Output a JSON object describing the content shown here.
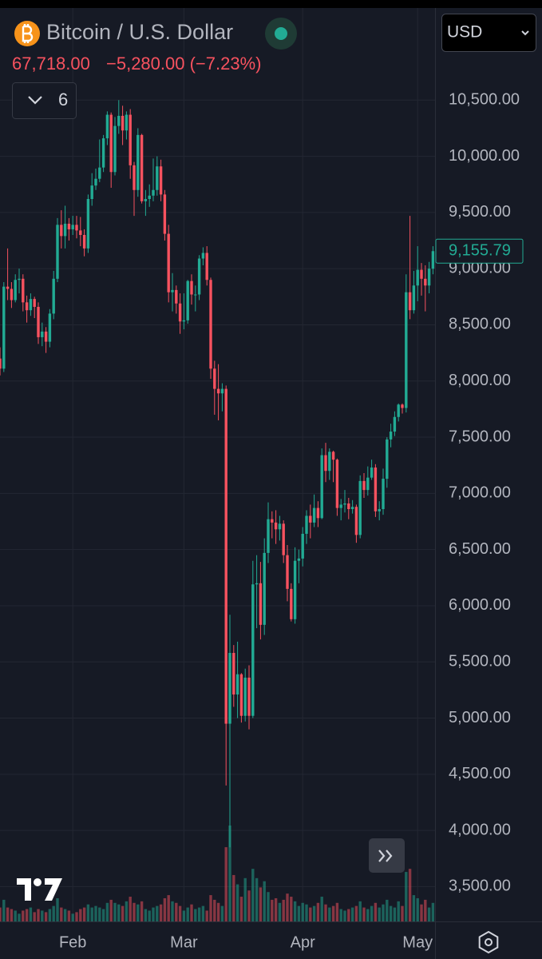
{
  "header": {
    "title": "Bitcoin / U.S. Dollar",
    "price": "67,718.00",
    "change": "−5,280.00 (−7.23%)",
    "indicator_count": "6",
    "currency": "USD"
  },
  "chart_data": {
    "type": "candlestick",
    "categories": [
      null,
      null,
      null,
      null,
      null,
      null,
      null,
      null,
      null,
      null,
      null,
      null,
      null,
      null,
      null,
      null,
      null,
      null,
      null,
      "Feb",
      null,
      null,
      null,
      null,
      null,
      null,
      null,
      null,
      null,
      null,
      null,
      null,
      null,
      null,
      null,
      null,
      null,
      null,
      null,
      null,
      null,
      null,
      null,
      null,
      null,
      null,
      null,
      null,
      "Mar",
      null,
      null,
      null,
      null,
      null,
      null,
      null,
      null,
      null,
      null,
      null,
      null,
      null,
      null,
      null,
      null,
      null,
      null,
      null,
      null,
      null,
      null,
      null,
      null,
      null,
      null,
      null,
      null,
      null,
      null,
      "Apr",
      null,
      null,
      null,
      null,
      null,
      null,
      null,
      null,
      null,
      null,
      null,
      null,
      null,
      null,
      null,
      null,
      null,
      null,
      null,
      null,
      null,
      null,
      null,
      null,
      null,
      null,
      null,
      null,
      null,
      "May",
      null,
      null,
      null,
      null
    ],
    "open": [
      8200,
      8110,
      8840,
      8820,
      8720,
      8900,
      8910,
      8700,
      8630,
      8730,
      8660,
      8390,
      8440,
      8350,
      8600,
      8910,
      9390,
      9290,
      9400,
      9350,
      9390,
      9340,
      9300,
      9180,
      9620,
      9740,
      9800,
      9900,
      10160,
      10370,
      9860,
      10270,
      10360,
      10230,
      10370,
      9920,
      9700,
      10190,
      9600,
      9620,
      9650,
      9700,
      9910,
      9660,
      9310,
      8790,
      8810,
      8690,
      8530,
      8540,
      8890,
      8770,
      8770,
      9090,
      9140,
      8900,
      8110,
      7930,
      7890,
      7930,
      4950,
      5580,
      5210,
      5390,
      5020,
      5360,
      5020,
      6190,
      6200,
      5830,
      6470,
      6770,
      6740,
      6680,
      6730,
      6450,
      6150,
      5880,
      6400,
      6420,
      6640,
      6800,
      6740,
      6870,
      6780,
      7340,
      7200,
      7370,
      7300,
      6870,
      6900,
      6910,
      6860,
      6880,
      6630,
      7110,
      7030,
      7140,
      7230,
      6840,
      6860,
      7130,
      7480,
      7550,
      7680,
      7790,
      7760,
      8790,
      8630,
      8850,
      8990,
      8910,
      8850,
      9000
    ],
    "high": [
      8300,
      8880,
      9180,
      8880,
      8950,
      9000,
      8950,
      8760,
      8780,
      8750,
      8700,
      8520,
      8480,
      8640,
      8980,
      9450,
      9520,
      9560,
      9450,
      9470,
      9470,
      9460,
      9350,
      9660,
      9850,
      9890,
      10150,
      10190,
      10400,
      10390,
      10350,
      10500,
      10450,
      10400,
      10420,
      9950,
      10250,
      10200,
      9700,
      9750,
      9980,
      10000,
      9970,
      9700,
      9390,
      8960,
      8850,
      8780,
      8780,
      8900,
      8950,
      8850,
      9120,
      9190,
      9200,
      8920,
      8180,
      8150,
      7980,
      7960,
      5920,
      5650,
      5680,
      5400,
      5440,
      5470,
      6400,
      6450,
      6390,
      6600,
      6920,
      6840,
      6850,
      6800,
      6760,
      6540,
      6200,
      6520,
      6500,
      6700,
      6850,
      6900,
      6990,
      6930,
      7400,
      7450,
      7400,
      7380,
      7310,
      6950,
      7030,
      6960,
      6940,
      6900,
      7160,
      7180,
      7240,
      7300,
      7260,
      6930,
      7220,
      7500,
      7620,
      7730,
      7800,
      7800,
      8950,
      9470,
      8980,
      9200,
      9050,
      9030,
      9060,
      9200
    ],
    "low": [
      8050,
      8080,
      8720,
      8650,
      8700,
      8780,
      8620,
      8520,
      8580,
      8560,
      8330,
      8310,
      8250,
      8300,
      8550,
      8880,
      9180,
      9180,
      9250,
      9300,
      9270,
      9200,
      9110,
      9140,
      9560,
      9700,
      9770,
      9860,
      10100,
      9720,
      9830,
      10200,
      10100,
      10150,
      9800,
      9470,
      9640,
      9580,
      9470,
      9550,
      9600,
      9650,
      9600,
      9250,
      8700,
      8620,
      8600,
      8420,
      8460,
      8510,
      8680,
      8620,
      8720,
      9030,
      8850,
      8020,
      7700,
      7650,
      7730,
      4400,
      3850,
      5100,
      5000,
      4960,
      4970,
      4900,
      5000,
      5800,
      5700,
      5740,
      6380,
      6600,
      6550,
      6580,
      6380,
      6040,
      5860,
      5840,
      6200,
      6350,
      6550,
      6600,
      6700,
      6700,
      6770,
      7100,
      7120,
      7100,
      6800,
      6760,
      6830,
      6770,
      6820,
      6560,
      6600,
      6960,
      6980,
      7120,
      6790,
      6760,
      6810,
      7050,
      7410,
      7510,
      7640,
      7710,
      7720,
      8550,
      8600,
      8710,
      8760,
      8620,
      8780,
      8950
    ],
    "close": [
      8110,
      8840,
      8820,
      8720,
      8900,
      8910,
      8700,
      8630,
      8730,
      8660,
      8390,
      8440,
      8350,
      8600,
      8910,
      9390,
      9290,
      9400,
      9350,
      9390,
      9340,
      9300,
      9180,
      9620,
      9740,
      9800,
      9900,
      10160,
      10370,
      9860,
      10270,
      10360,
      10230,
      10370,
      9920,
      9700,
      10190,
      9600,
      9620,
      9650,
      9700,
      9910,
      9660,
      9310,
      8790,
      8810,
      8690,
      8530,
      8540,
      8890,
      8770,
      8770,
      9090,
      9140,
      8900,
      8110,
      7930,
      7890,
      7930,
      4950,
      5580,
      5210,
      5390,
      5020,
      5360,
      5020,
      6190,
      6200,
      5830,
      6470,
      6770,
      6740,
      6680,
      6730,
      6450,
      6150,
      5880,
      6400,
      6420,
      6640,
      6800,
      6740,
      6870,
      6780,
      7340,
      7200,
      7370,
      7300,
      6870,
      6900,
      6910,
      6860,
      6880,
      6630,
      7110,
      7030,
      7140,
      7230,
      6840,
      6860,
      7130,
      7480,
      7550,
      7680,
      7790,
      7760,
      8790,
      8630,
      8850,
      8990,
      8910,
      8850,
      9000,
      9155.79
    ],
    "volume": [
      9000,
      14000,
      9000,
      8000,
      7000,
      5000,
      7000,
      8000,
      9000,
      6000,
      8000,
      7000,
      6000,
      8000,
      10000,
      15000,
      9000,
      8000,
      7000,
      5000,
      6000,
      8000,
      9000,
      11000,
      9000,
      10000,
      9000,
      8000,
      12000,
      14000,
      12000,
      11000,
      10000,
      13000,
      16000,
      12000,
      11000,
      13000,
      8000,
      7000,
      9000,
      10000,
      11000,
      15000,
      17000,
      13000,
      12000,
      10000,
      7000,
      9000,
      11000,
      8000,
      9000,
      10000,
      7000,
      17000,
      14000,
      12000,
      10000,
      48000,
      62000,
      30000,
      24000,
      16000,
      28000,
      20000,
      34000,
      28000,
      22000,
      26000,
      19000,
      14000,
      15000,
      12000,
      14000,
      18000,
      16000,
      13000,
      10000,
      12000,
      11000,
      9000,
      10000,
      12000,
      16000,
      11000,
      9000,
      10000,
      12000,
      8000,
      7000,
      8000,
      9000,
      10000,
      13000,
      9000,
      8000,
      10000,
      12000,
      9000,
      11000,
      14000,
      10000,
      9000,
      13000,
      10000,
      32000,
      34000,
      17000,
      15000,
      11000,
      14000,
      9000,
      12000
    ],
    "last_close_label": "9,155.79",
    "up_color": "#22ab94",
    "down_color": "#f7525f",
    "ylim": [
      3190,
      11320
    ],
    "yticks": [
      {
        "value": 3500,
        "label": "3,500.00"
      },
      {
        "value": 4000,
        "label": "4,000.00"
      },
      {
        "value": 4500,
        "label": "4,500.00"
      },
      {
        "value": 5000,
        "label": "5,000.00"
      },
      {
        "value": 5500,
        "label": "5,500.00"
      },
      {
        "value": 6000,
        "label": "6,000.00"
      },
      {
        "value": 6500,
        "label": "6,500.00"
      },
      {
        "value": 7000,
        "label": "7,000.00"
      },
      {
        "value": 7500,
        "label": "7,500.00"
      },
      {
        "value": 8000,
        "label": "8,000.00"
      },
      {
        "value": 8500,
        "label": "8,500.00"
      },
      {
        "value": 9000,
        "label": "9,000.00"
      },
      {
        "value": 9500,
        "label": "9,500.00"
      },
      {
        "value": 10000,
        "label": "10,000.00"
      },
      {
        "value": 10500,
        "label": "10,500.00"
      }
    ],
    "grid": true
  }
}
